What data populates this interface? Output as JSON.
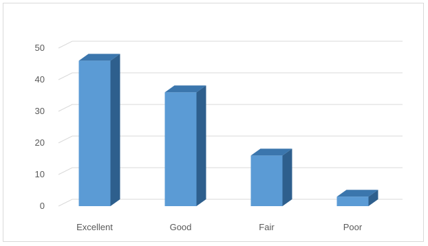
{
  "chart_data": {
    "type": "bar",
    "style": "3d-column",
    "categories": [
      "Excellent",
      "Good",
      "Fair",
      "Poor"
    ],
    "values": [
      46,
      36,
      16,
      3
    ],
    "title": "",
    "xlabel": "",
    "ylabel": "",
    "ylim": [
      0,
      50
    ],
    "yticks": [
      "0",
      "10",
      "20",
      "30",
      "40",
      "50"
    ],
    "grid": true,
    "legend": "none",
    "colors": {
      "front": "#5b9bd5",
      "side": "#2e5f8d",
      "top": "#3b76ad",
      "grid": "#d9d9d9",
      "text": "#595959"
    }
  }
}
